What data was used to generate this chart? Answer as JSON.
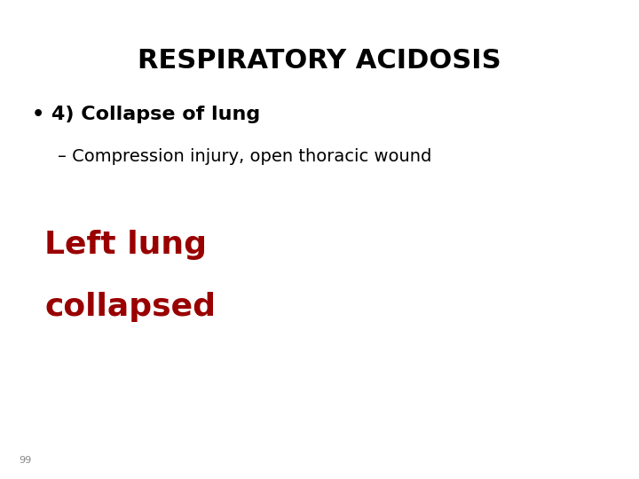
{
  "title": "RESPIRATORY ACIDOSIS",
  "title_fontsize": 22,
  "title_color": "#000000",
  "title_fontweight": "bold",
  "bullet_text": "4) Collapse of lung",
  "bullet_fontsize": 16,
  "bullet_fontweight": "bold",
  "bullet_color": "#000000",
  "sub_bullet_text": "– Compression injury, open thoracic wound",
  "sub_bullet_fontsize": 14,
  "sub_bullet_color": "#000000",
  "red_line1": "Left lung",
  "red_line2": "collapsed",
  "red_fontsize": 26,
  "red_color": "#990000",
  "red_fontweight": "bold",
  "page_number": "99",
  "page_number_fontsize": 8,
  "page_number_color": "#888888",
  "background_color": "#ffffff"
}
